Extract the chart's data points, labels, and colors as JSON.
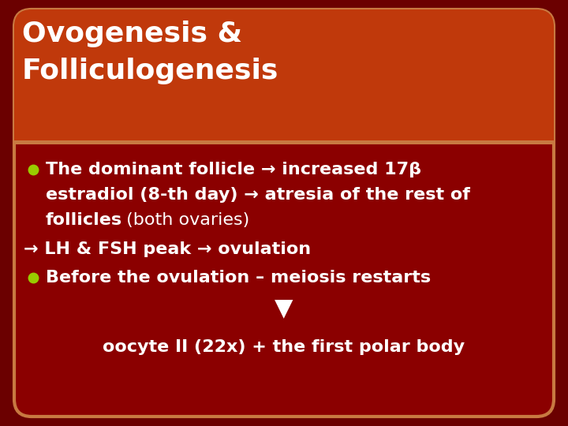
{
  "bg_color": "#8b0000",
  "title_bg_color": "#c0390b",
  "title_text_line1": "Ovogenesis &",
  "title_text_line2": "Folliculogenesis",
  "title_text_color": "#ffffff",
  "title_font_size": 26,
  "body_bg_color": "#8b0000",
  "bullet_color": "#99cc00",
  "body_text_color": "#ffffff",
  "arrow_line": "→ LH & FSH peak → ovulation",
  "bullet2_bold": "Before the ovulation – meiosis restarts",
  "arrow_down": "▼",
  "bottom_line": "oocyte II (22x) + the first polar body",
  "body_font_size": 16,
  "border_color": "#c87941",
  "outer_bg_color": "#6b0000"
}
